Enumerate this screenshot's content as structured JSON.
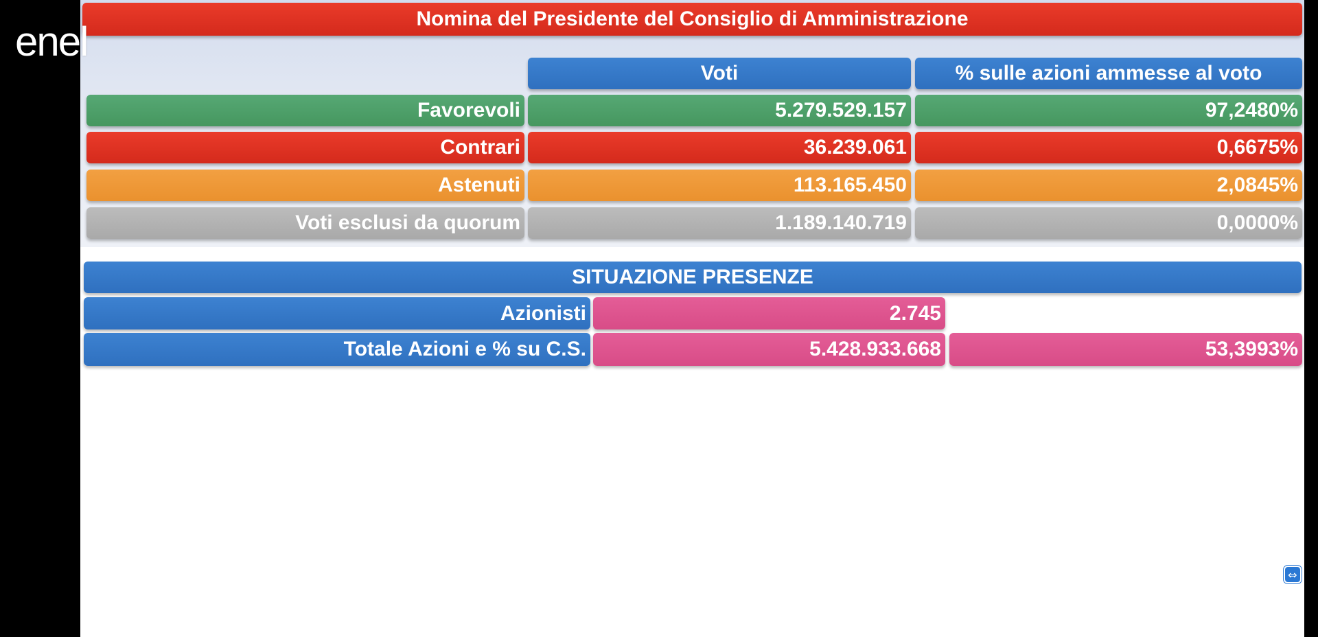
{
  "brand": {
    "logo_text": "enel"
  },
  "title": "Nomina del Presidente del Consiglio di Amministrazione",
  "votes_table": {
    "headers": {
      "votes": "Voti",
      "percent": "% sulle azioni ammesse al voto"
    },
    "rows": [
      {
        "label": "Favorevoli",
        "votes": "5.279.529.157",
        "percent": "97,2480%",
        "color": "#4fa06a"
      },
      {
        "label": "Contrari",
        "votes": "36.239.061",
        "percent": "0,6675%",
        "color": "#df3223"
      },
      {
        "label": "Astenuti",
        "votes": "113.165.450",
        "percent": "2,0845%",
        "color": "#ef9a38"
      },
      {
        "label": "Voti esclusi da quorum",
        "votes": "1.189.140.719",
        "percent": "0,0000%",
        "color": "#b3b3b3"
      }
    ]
  },
  "presence": {
    "title": "SITUAZIONE PRESENZE",
    "shareholders": {
      "label": "Azionisti",
      "value": "2.745"
    },
    "total": {
      "label": "Totale Azioni e % su C.S.",
      "value": "5.428.933.668",
      "percent": "53,3993%"
    }
  },
  "colors": {
    "header_blue": "#3479c9",
    "title_red": "#df3223",
    "presence_pink": "#de5590"
  },
  "icons": {
    "remote_control": "teamviewer-icon"
  }
}
